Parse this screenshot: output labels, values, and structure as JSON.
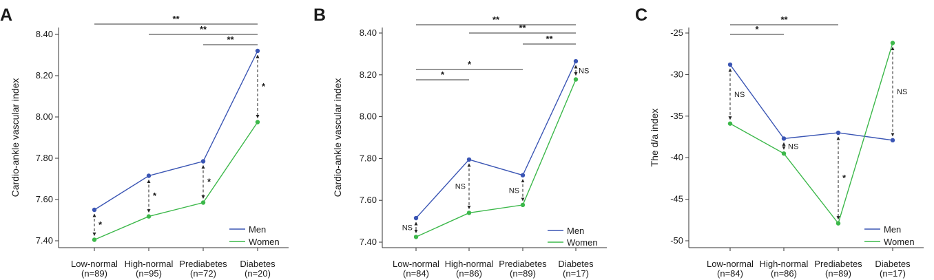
{
  "colors": {
    "men": "#3a55b4",
    "women": "#3cb84a",
    "axis": "#333333",
    "bracket": "#333333"
  },
  "chart_data": [
    {
      "panel": "A",
      "type": "line",
      "ylabel": "Cardio-ankle vascular index",
      "ylim": [
        7.4,
        8.4
      ],
      "yticks": [
        "7.40",
        "7.60",
        "7.80",
        "8.00",
        "8.20",
        "8.40"
      ],
      "categories": [
        "Low-normal",
        "High-normal",
        "Prediabetes",
        "Diabetes"
      ],
      "category_n": [
        "(n=89)",
        "(n=95)",
        "(n=72)",
        "(n=20)"
      ],
      "series": [
        {
          "name": "Men",
          "values": [
            7.55,
            7.715,
            7.785,
            8.32
          ]
        },
        {
          "name": "Women",
          "values": [
            7.405,
            7.518,
            7.585,
            7.975
          ]
        }
      ],
      "legend": [
        "Men",
        "Women"
      ],
      "legend_position": "bottom-right",
      "pair_labels": [
        "*",
        "*",
        "*",
        "*"
      ],
      "brackets": [
        {
          "from": 0,
          "to": 3,
          "label": "**"
        },
        {
          "from": 1,
          "to": 3,
          "label": "**"
        },
        {
          "from": 2,
          "to": 3,
          "label": "**"
        }
      ]
    },
    {
      "panel": "B",
      "type": "line",
      "ylabel": "Cardio-ankle vascular index",
      "ylim": [
        7.4,
        8.4
      ],
      "yticks": [
        "7.40",
        "7.60",
        "7.80",
        "8.00",
        "8.20",
        "8.40"
      ],
      "categories": [
        "Low-normal",
        "High-normal",
        "Prediabetes",
        "Diabetes"
      ],
      "category_n": [
        "(n=84)",
        "(n=86)",
        "(n=89)",
        "(n=17)"
      ],
      "series": [
        {
          "name": "Men",
          "values": [
            7.515,
            7.795,
            7.72,
            8.265
          ]
        },
        {
          "name": "Women",
          "values": [
            7.425,
            7.54,
            7.578,
            8.178
          ]
        }
      ],
      "legend": [
        "Men",
        "Women"
      ],
      "legend_position": "bottom-right",
      "pair_labels": [
        "NS",
        "NS",
        "NS",
        "NS"
      ],
      "brackets": [
        {
          "from": 0,
          "to": 3,
          "label": "**"
        },
        {
          "from": 1,
          "to": 3,
          "label": "**"
        },
        {
          "from": 2,
          "to": 3,
          "label": "**"
        },
        {
          "from": 0,
          "to": 2,
          "label": "*"
        },
        {
          "from": 0,
          "to": 1,
          "label": "*"
        }
      ]
    },
    {
      "panel": "C",
      "type": "line",
      "ylabel": "The d/a index",
      "ylim": [
        -50,
        -25
      ],
      "yticks": [
        "-50",
        "-45",
        "-40",
        "-35",
        "-30",
        "-25"
      ],
      "categories": [
        "Low-normal",
        "High-normal",
        "Prediabetes",
        "Diabetes"
      ],
      "category_n": [
        "(n=84)",
        "(n=86)",
        "(n=89)",
        "(n=17)"
      ],
      "series": [
        {
          "name": "Men",
          "values": [
            -28.8,
            -37.7,
            -37.0,
            -37.9
          ]
        },
        {
          "name": "Women",
          "values": [
            -35.9,
            -39.5,
            -47.9,
            -26.2
          ]
        }
      ],
      "legend": [
        "Men",
        "Women"
      ],
      "legend_position": "bottom-right",
      "pair_labels": [
        "NS",
        "NS",
        "*",
        "NS"
      ],
      "brackets": [
        {
          "from": 0,
          "to": 2,
          "label": "**"
        },
        {
          "from": 0,
          "to": 1,
          "label": "*"
        }
      ]
    }
  ]
}
